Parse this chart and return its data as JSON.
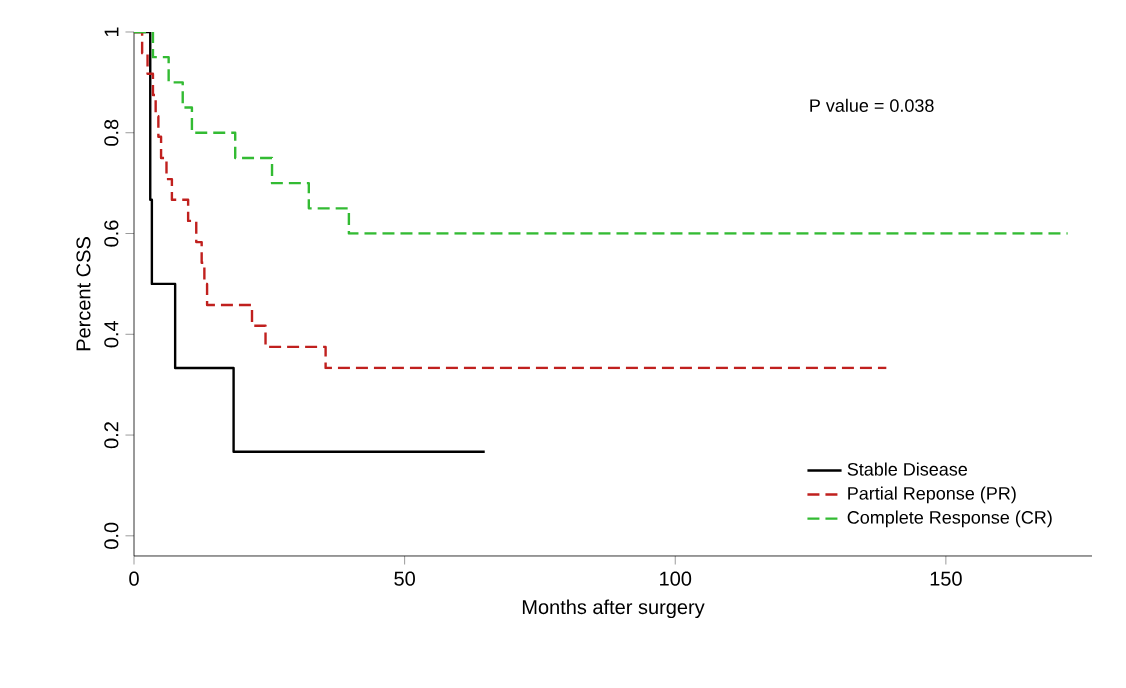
{
  "chart_data": {
    "type": "step",
    "xlabel": "Months after surgery",
    "ylabel": "Percent CSS",
    "xlim": [
      0,
      177
    ],
    "ylim": [
      -0.04,
      1.0
    ],
    "xticks": [
      0,
      50,
      100,
      150
    ],
    "yticks": [
      {
        "value": 0,
        "label": "0.0"
      },
      {
        "value": 0.2,
        "label": "0.2"
      },
      {
        "value": 0.4,
        "label": "0.4"
      },
      {
        "value": 0.6,
        "label": "0.6"
      },
      {
        "value": 0.8,
        "label": "0.8"
      },
      {
        "value": 1,
        "label": "1"
      }
    ],
    "legend": "bottom right",
    "grid": false,
    "annotations": [
      "P value = 0.038"
    ],
    "series": [
      {
        "name": "Stable Disease",
        "color": "#000000",
        "line_style": "solid",
        "x": [
          0,
          3,
          3.3,
          7.6,
          18.4,
          64.8
        ],
        "values": [
          1,
          0.667,
          0.5,
          0.333,
          0.167,
          0.167
        ]
      },
      {
        "name": "Partial Reponse (PR)",
        "color": "#c0201e",
        "line_style": "dashed",
        "x": [
          0,
          1.5,
          2.5,
          3.5,
          4,
          4.5,
          5,
          6,
          7,
          10,
          11.5,
          12.5,
          13,
          13.5,
          21.8,
          24.3,
          35.4,
          139
        ],
        "values": [
          1,
          0.958,
          0.917,
          0.875,
          0.833,
          0.792,
          0.75,
          0.708,
          0.667,
          0.625,
          0.583,
          0.542,
          0.5,
          0.458,
          0.417,
          0.375,
          0.333,
          0.333
        ]
      },
      {
        "name": "Complete Response (CR)",
        "color": "#33bb33",
        "line_style": "dashed",
        "x": [
          0,
          3.5,
          6.4,
          9,
          10.7,
          18.7,
          25.5,
          32.3,
          39.7,
          172.5
        ],
        "values": [
          1,
          0.95,
          0.9,
          0.85,
          0.8,
          0.75,
          0.7,
          0.65,
          0.6,
          0.6
        ]
      }
    ]
  }
}
